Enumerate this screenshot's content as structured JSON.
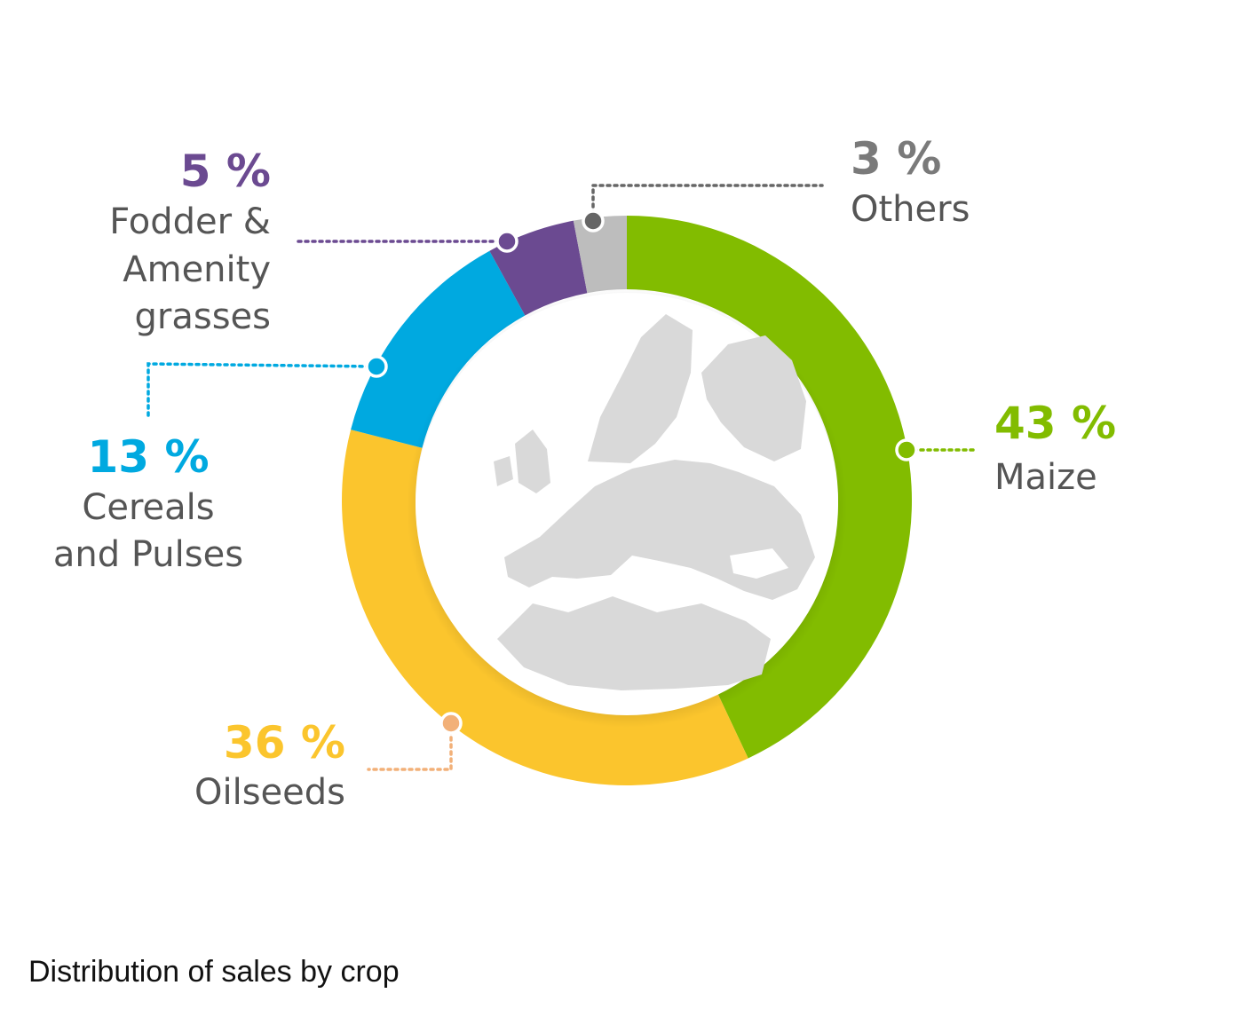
{
  "chart_data": {
    "type": "pie",
    "style": "donut",
    "start_angle_deg": 0,
    "direction": "clockwise",
    "slices": [
      {
        "key": "maize",
        "value": 43,
        "percent_label": "43 %",
        "label_lines": [
          "Maize"
        ],
        "color": "#82BC00"
      },
      {
        "key": "oilseeds",
        "value": 36,
        "percent_label": "36 %",
        "label_lines": [
          "Oilseeds"
        ],
        "color": "#FBC52D"
      },
      {
        "key": "cereals",
        "value": 13,
        "percent_label": "13 %",
        "label_lines": [
          "Cereals",
          "and Pulses"
        ],
        "color": "#00A9E0"
      },
      {
        "key": "fodder",
        "value": 5,
        "percent_label": "5 %",
        "label_lines": [
          "Fodder &",
          "Amenity",
          "grasses"
        ],
        "color": "#6B4A91"
      },
      {
        "key": "others",
        "value": 3,
        "percent_label": "3 %",
        "label_lines": [
          "Others"
        ],
        "color": "#BDBDBD"
      }
    ],
    "percent_colors": {
      "maize": "#82BC00",
      "oilseeds": "#FBC52D",
      "cereals": "#00A9E0",
      "fodder": "#6B4A91",
      "others": "#7A7A7A"
    },
    "connector_colors": {
      "maize": "#82BC00",
      "oilseeds": "#F2B078",
      "cereals": "#00A9E0",
      "fodder": "#6B4A91",
      "others": "#666666"
    },
    "center_image": "europe-map",
    "caption": "Distribution of sales by crop"
  }
}
